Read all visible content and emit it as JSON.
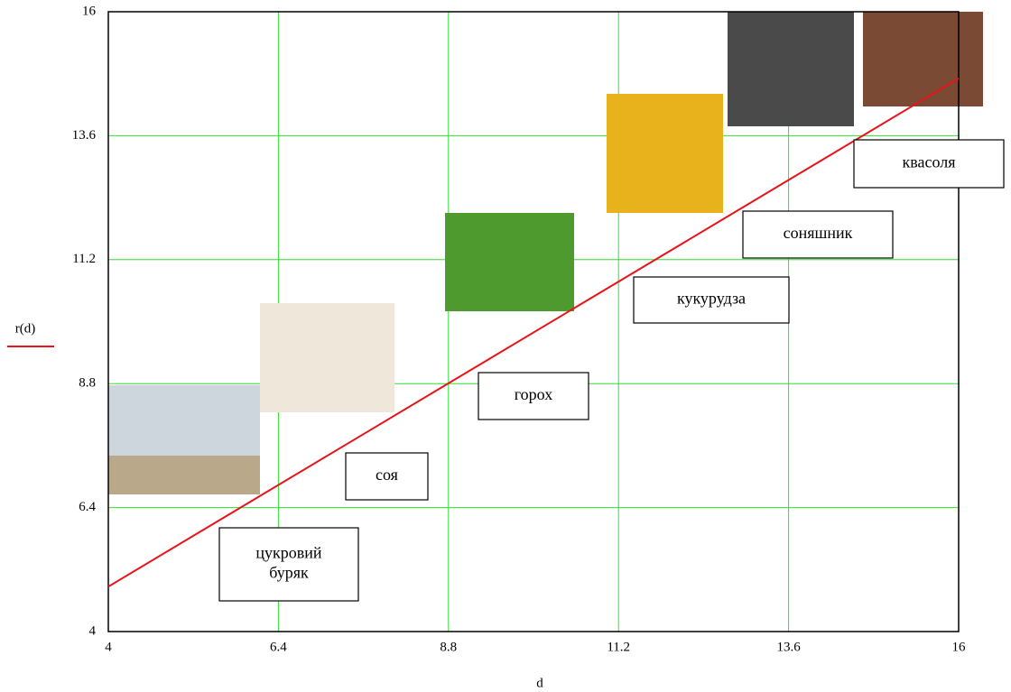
{
  "chart_data": {
    "type": "line",
    "x_label": "d",
    "x": [
      4,
      16
    ],
    "series": [
      {
        "name": "r(d)",
        "color": "#e8141a",
        "values": [
          4.87,
          14.71
        ]
      }
    ],
    "xlim": [
      4,
      16
    ],
    "ylim": [
      4,
      16
    ],
    "xticks": [
      4,
      6.4,
      8.8,
      11.2,
      13.6,
      16
    ],
    "yticks": [
      4,
      6.4,
      8.8,
      11.2,
      13.6,
      16
    ],
    "grid": true,
    "grid_color": "#2ee02e",
    "annotations": [
      [
        "цукровий",
        "буряк"
      ],
      [
        "соя"
      ],
      [
        "горох"
      ],
      [
        "кукурудза"
      ],
      [
        "соняшник"
      ],
      [
        "квасоля"
      ]
    ]
  }
}
